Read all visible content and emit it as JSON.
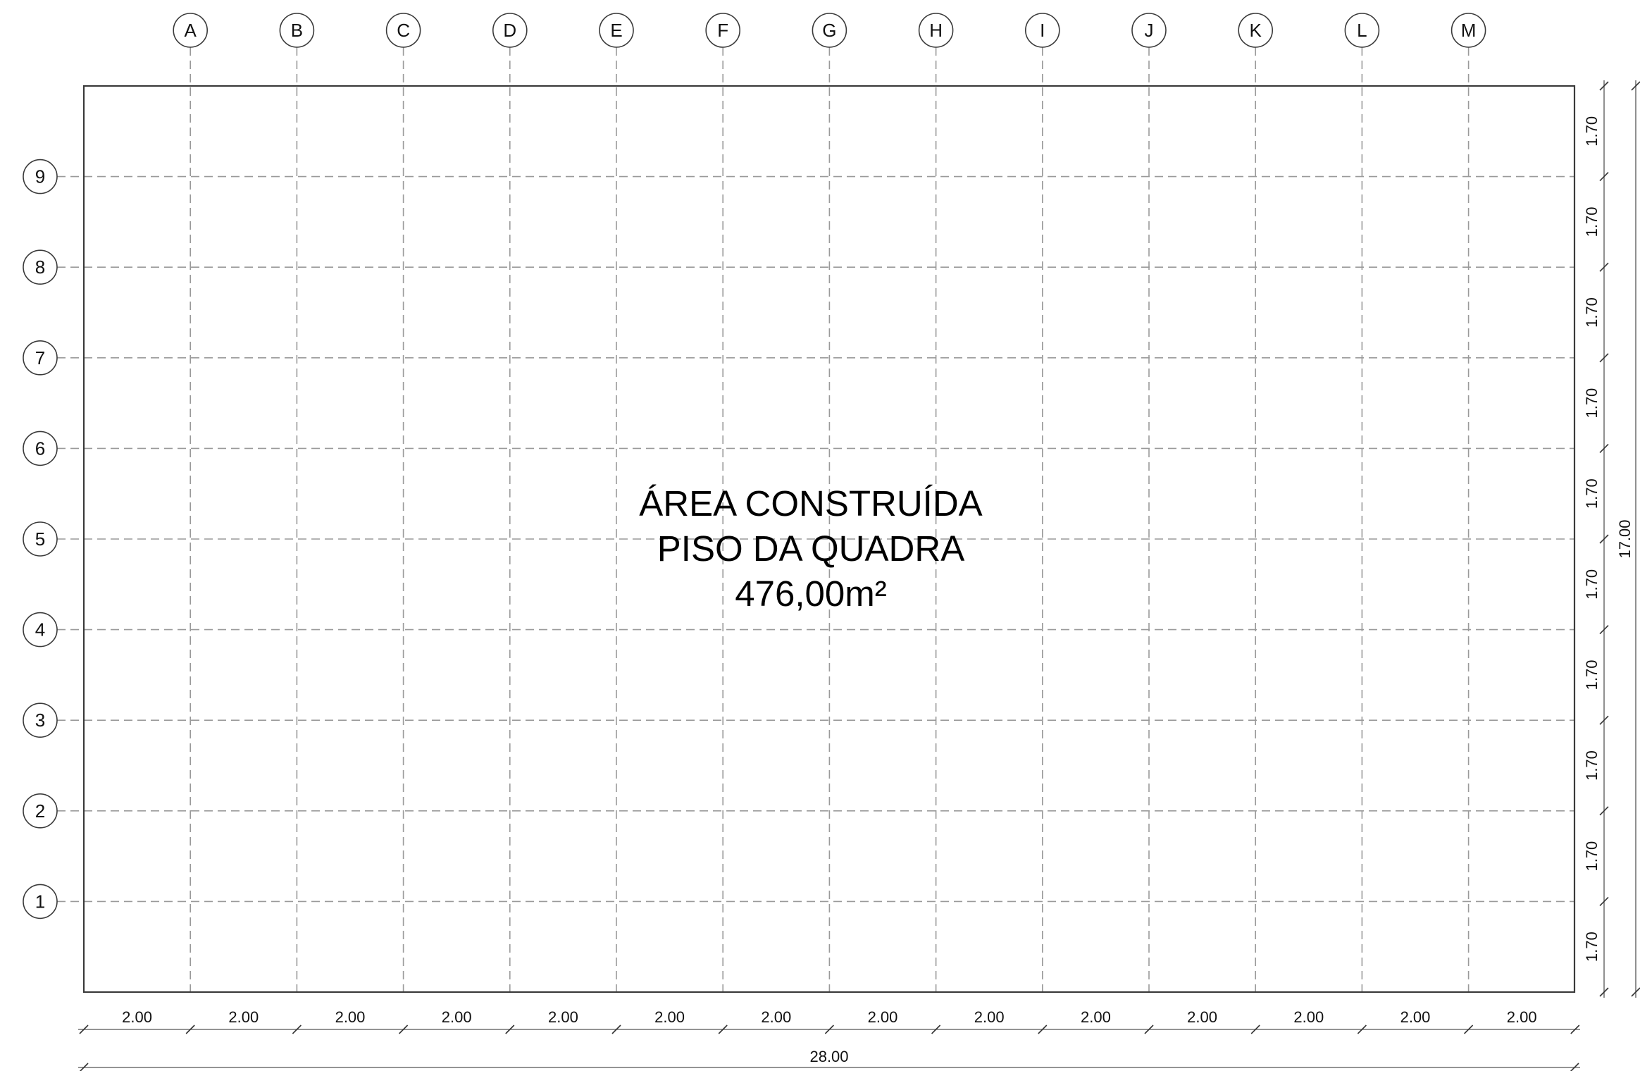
{
  "column_axes": [
    "A",
    "B",
    "C",
    "D",
    "E",
    "F",
    "G",
    "H",
    "I",
    "J",
    "K",
    "L",
    "M"
  ],
  "row_axes": [
    "9",
    "8",
    "7",
    "6",
    "5",
    "4",
    "3",
    "2",
    "1"
  ],
  "area_label": {
    "line1": "ÁREA CONSTRUÍDA",
    "line2": "PISO DA QUADRA",
    "line3": "476,00m²"
  },
  "horizontal_dimensions": {
    "segments": [
      "2.00",
      "2.00",
      "2.00",
      "2.00",
      "2.00",
      "2.00",
      "2.00",
      "2.00",
      "2.00",
      "2.00",
      "2.00",
      "2.00",
      "2.00",
      "2.00"
    ],
    "total": "28.00"
  },
  "vertical_dimensions": {
    "segments": [
      "1.70",
      "1.70",
      "1.70",
      "1.70",
      "1.70",
      "1.70",
      "1.70",
      "1.70",
      "1.70",
      "1.70"
    ],
    "total": "17.00"
  },
  "colors": {
    "border": "#3a3a3a",
    "gridline": "#9a9a9a",
    "text": "#111111"
  }
}
